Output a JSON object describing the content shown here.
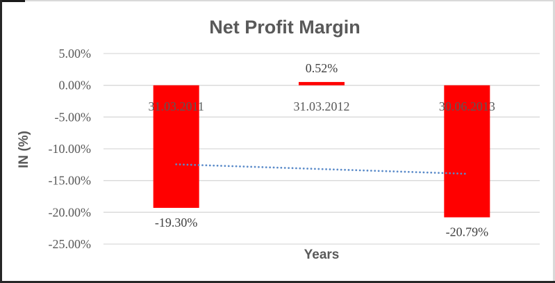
{
  "chart_data": {
    "type": "bar",
    "title": "Net Profit Margin",
    "xlabel": "Years",
    "ylabel": "IN (%)",
    "categories": [
      "31.03.2011",
      "31.03.2012",
      "30.06.2013"
    ],
    "series": [
      {
        "name": "Net Profit Margin",
        "values": [
          -19.3,
          0.52,
          -20.79
        ]
      }
    ],
    "data_labels": [
      "-19.30%",
      "0.52%",
      "-20.79%"
    ],
    "ylim": [
      -25,
      5
    ],
    "ytick_step": 5,
    "ytick_labels": [
      "5.00%",
      "0.00%",
      "-5.00%",
      "-10.00%",
      "-15.00%",
      "-20.00%",
      "-25.00%"
    ],
    "grid": true,
    "legend": false,
    "bar_color": "#FF0000",
    "gridline_color": "#D9D9D9",
    "axis_text_color": "#595959",
    "data_label_color": "#3F3F3F",
    "trendline": {
      "type": "linear",
      "style": "dotted",
      "color": "#5B8BC9",
      "y_at_first_category": -12.45,
      "y_at_last_category": -13.94
    }
  }
}
